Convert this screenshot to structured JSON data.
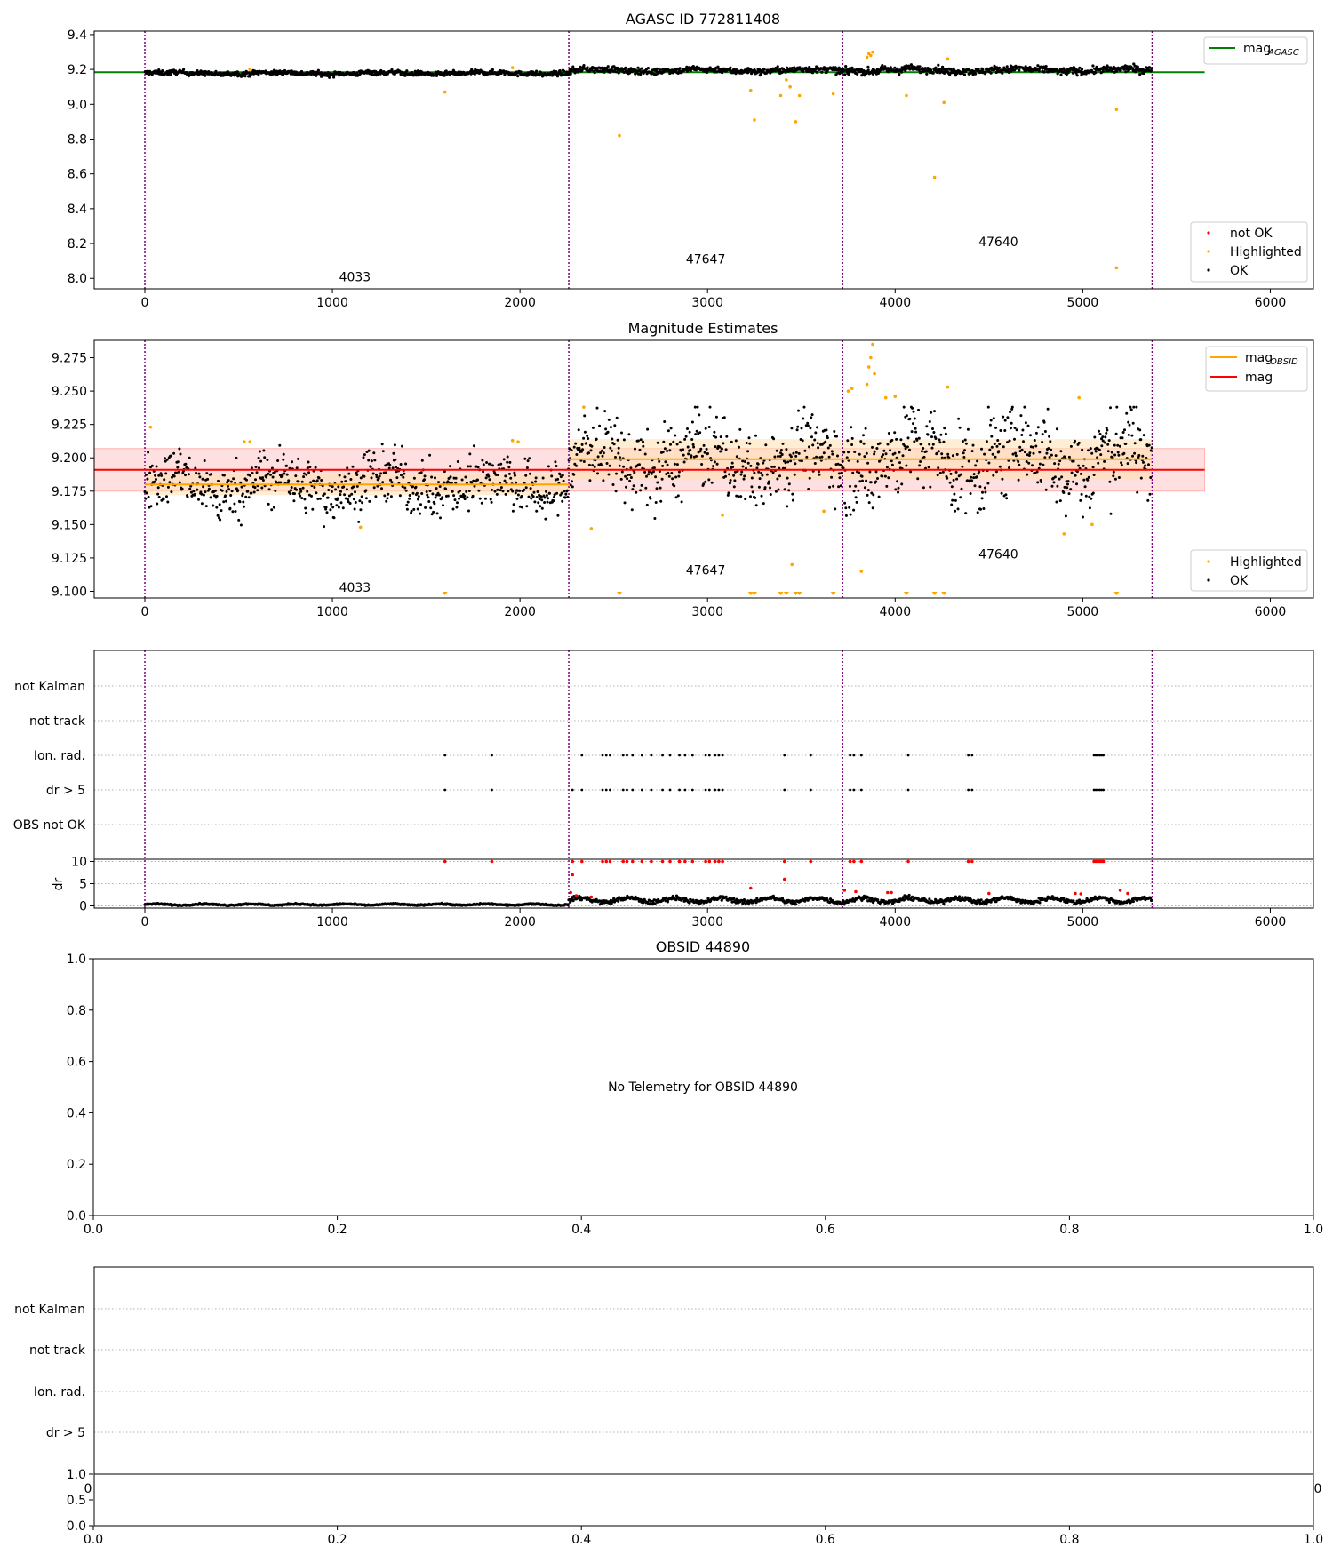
{
  "figure": {
    "title": "AGASC ID 772811408",
    "obs_labels": [
      "4033",
      "47647",
      "47640"
    ],
    "obs_boundaries": [
      0,
      2260,
      3720,
      5370
    ],
    "colors": {
      "boundary": "#800080",
      "ok": "#000000",
      "highlighted": "#ffa500",
      "not_ok": "#ff0000",
      "mag_agasc": "#008000",
      "mag": "#ff0000",
      "mag_obsid": "#ffa500",
      "band_mag": "#ffcccc",
      "band_obsid": "#ffe0b0",
      "grid": "#b0b0b0"
    }
  },
  "chart_data": [
    {
      "type": "scatter",
      "title": "AGASC ID 772811408",
      "xlim": [
        -270,
        6230
      ],
      "ylim": [
        7.94,
        9.42
      ],
      "xticks": [
        0,
        1000,
        2000,
        3000,
        4000,
        5000,
        6000
      ],
      "yticks": [
        8.0,
        8.2,
        8.4,
        8.6,
        8.8,
        9.0,
        9.2,
        9.4
      ],
      "ytick_labels": [
        "8.0",
        "8.2",
        "8.4",
        "8.6",
        "8.8",
        "9.0",
        "9.2",
        "9.4"
      ],
      "lines": [
        {
          "name": "mag_AGASC",
          "y": 9.184,
          "x": [
            -270,
            5650
          ],
          "color": "#008000"
        }
      ],
      "legend_lines": [
        {
          "label": "mag",
          "sub": "AGASC",
          "color": "#008000"
        }
      ],
      "legend_points": [
        {
          "label": "not OK",
          "color": "#ff0000"
        },
        {
          "label": "Highlighted",
          "color": "#ffa500"
        },
        {
          "label": "OK",
          "color": "#000000"
        }
      ],
      "segments": [
        {
          "x_start": 0,
          "x_end": 2260,
          "center": 9.178,
          "spread": 0.007
        },
        {
          "x_start": 2260,
          "x_end": 3720,
          "center": 9.195,
          "spread": 0.009
        },
        {
          "x_start": 3720,
          "x_end": 5370,
          "center": 9.196,
          "spread": 0.01
        }
      ],
      "highlighted_points": [
        [
          1600,
          9.07
        ],
        [
          2530,
          8.82
        ],
        [
          3230,
          9.08
        ],
        [
          3250,
          8.91
        ],
        [
          3390,
          9.05
        ],
        [
          3420,
          9.14
        ],
        [
          3440,
          9.1
        ],
        [
          3470,
          8.9
        ],
        [
          3490,
          9.05
        ],
        [
          3670,
          9.06
        ],
        [
          3850,
          9.27
        ],
        [
          3860,
          9.29
        ],
        [
          3870,
          9.28
        ],
        [
          3880,
          9.3
        ],
        [
          4060,
          9.05
        ],
        [
          4210,
          8.58
        ],
        [
          4260,
          9.01
        ],
        [
          5180,
          8.97
        ],
        [
          5180,
          8.06
        ],
        [
          4280,
          9.26
        ],
        [
          560,
          9.2
        ],
        [
          1960,
          9.21
        ]
      ],
      "annotations": [
        {
          "text": "4033",
          "x": 1120,
          "y": 8.01
        },
        {
          "text": "47647",
          "x": 2990,
          "y": 8.11
        },
        {
          "text": "47640",
          "x": 4550,
          "y": 8.21
        }
      ]
    },
    {
      "type": "scatter",
      "title": "Magnitude Estimates",
      "xlim": [
        -270,
        6230
      ],
      "ylim": [
        9.095,
        9.288
      ],
      "xticks": [
        0,
        1000,
        2000,
        3000,
        4000,
        5000,
        6000
      ],
      "yticks": [
        9.1,
        9.125,
        9.15,
        9.175,
        9.2,
        9.225,
        9.25,
        9.275
      ],
      "ytick_labels": [
        "9.100",
        "9.125",
        "9.150",
        "9.175",
        "9.200",
        "9.225",
        "9.250",
        "9.275"
      ],
      "mag": {
        "y": 9.191,
        "band": [
          9.175,
          9.207
        ],
        "x": [
          -270,
          5650
        ]
      },
      "mag_obsid": [
        {
          "x": [
            0,
            2260
          ],
          "y": 9.18,
          "band": [
            9.172,
            9.188
          ]
        },
        {
          "x": [
            2260,
            5370
          ],
          "y": 9.199,
          "band": [
            9.184,
            9.214
          ]
        }
      ],
      "legend_lines": [
        {
          "label": "mag",
          "sub": "OBSID",
          "color": "#ffa500"
        },
        {
          "label": "mag",
          "sub": "",
          "color": "#ff0000"
        }
      ],
      "legend_points": [
        {
          "label": "Highlighted",
          "color": "#ffa500"
        },
        {
          "label": "OK",
          "color": "#000000"
        }
      ],
      "segments": [
        {
          "x_start": 0,
          "x_end": 2260,
          "center": 9.18,
          "spread": 0.01
        },
        {
          "x_start": 2260,
          "x_end": 3720,
          "center": 9.198,
          "spread": 0.014
        },
        {
          "x_start": 3720,
          "x_end": 5370,
          "center": 9.2,
          "spread": 0.016
        }
      ],
      "highlighted_points": [
        [
          30,
          9.223
        ],
        [
          530,
          9.212
        ],
        [
          560,
          9.212
        ],
        [
          1960,
          9.213
        ],
        [
          1990,
          9.212
        ],
        [
          1150,
          9.148
        ],
        [
          2340,
          9.238
        ],
        [
          2380,
          9.147
        ],
        [
          3080,
          9.157
        ],
        [
          3450,
          9.12
        ],
        [
          3620,
          9.16
        ],
        [
          3750,
          9.25
        ],
        [
          3770,
          9.252
        ],
        [
          3850,
          9.255
        ],
        [
          3860,
          9.268
        ],
        [
          3870,
          9.275
        ],
        [
          3880,
          9.285
        ],
        [
          3890,
          9.263
        ],
        [
          3950,
          9.245
        ],
        [
          4000,
          9.246
        ],
        [
          4280,
          9.253
        ],
        [
          3820,
          9.115
        ],
        [
          4900,
          9.143
        ],
        [
          4980,
          9.245
        ],
        [
          5050,
          9.15
        ]
      ],
      "clipped_points_x": [
        1600,
        2530,
        3230,
        3250,
        3390,
        3420,
        3470,
        3490,
        3670,
        4060,
        4210,
        4260,
        5180
      ],
      "annotations": [
        {
          "text": "4033",
          "x": 1120,
          "y": 9.103
        },
        {
          "text": "47647",
          "x": 2990,
          "y": 9.116
        },
        {
          "text": "47640",
          "x": 4550,
          "y": 9.128
        }
      ]
    },
    {
      "type": "scatter",
      "title": "",
      "xlim": [
        -270,
        6230
      ],
      "xticks": [
        0,
        1000,
        2000,
        3000,
        4000,
        5000,
        6000
      ],
      "flag_rows": [
        "not Kalman",
        "not track",
        "Ion. rad.",
        "dr > 5",
        "OBS not OK"
      ],
      "flag_points": {
        "Ion. rad.": [
          1600,
          1850,
          2330,
          2440,
          2460,
          2480,
          2550,
          2570,
          2600,
          2650,
          2700,
          2760,
          2800,
          2850,
          2880,
          2920,
          2990,
          3010,
          3040,
          3060,
          3080,
          3410,
          3550,
          3760,
          3780,
          3820,
          4070,
          4390,
          4410,
          5060,
          5070,
          5080,
          5090,
          5100,
          5110
        ],
        "dr > 5": [
          1600,
          1850,
          2280,
          2330,
          2440,
          2460,
          2480,
          2550,
          2570,
          2600,
          2650,
          2700,
          2760,
          2800,
          2850,
          2880,
          2920,
          2990,
          3010,
          3040,
          3060,
          3080,
          3410,
          3550,
          3760,
          3780,
          3820,
          4070,
          4390,
          4410,
          5060,
          5070,
          5080,
          5090,
          5100,
          5110
        ]
      },
      "dr": {
        "ylabel": "dr",
        "ylim": [
          -0.5,
          10.5
        ],
        "yticks": [
          0,
          5,
          10
        ],
        "ytick_labels": [
          "0",
          "5",
          "10"
        ],
        "segments": [
          {
            "x_start": 0,
            "x_end": 2260,
            "center": 0.3,
            "spread": 0.15
          },
          {
            "x_start": 2260,
            "x_end": 5370,
            "center": 1.3,
            "spread": 0.5
          }
        ],
        "not_ok_clipped_x": [
          1600,
          1850,
          2280,
          2330,
          2440,
          2460,
          2480,
          2550,
          2570,
          2600,
          2650,
          2700,
          2760,
          2800,
          2850,
          2880,
          2920,
          2990,
          3010,
          3040,
          3060,
          3080,
          3410,
          3550,
          3760,
          3780,
          3820,
          4070,
          4390,
          4410,
          5060,
          5070,
          5080,
          5090,
          5100,
          5110
        ],
        "not_ok_points": [
          [
            2270,
            3.0
          ],
          [
            2280,
            7.0
          ],
          [
            3230,
            4.0
          ],
          [
            3410,
            6.0
          ],
          [
            3730,
            3.5
          ],
          [
            3790,
            3.2
          ],
          [
            3960,
            3.0
          ],
          [
            3980,
            3.0
          ],
          [
            4500,
            2.8
          ],
          [
            4960,
            2.8
          ],
          [
            4990,
            2.7
          ],
          [
            5200,
            3.5
          ],
          [
            5240,
            2.8
          ],
          [
            2300,
            2.3
          ],
          [
            2380,
            2.0
          ]
        ]
      }
    },
    {
      "type": "scatter",
      "title": "OBSID 44890",
      "xlim": [
        0,
        1
      ],
      "ylim": [
        0,
        1
      ],
      "xticks": [
        0.0,
        0.2,
        0.4,
        0.6,
        0.8,
        1.0
      ],
      "xtick_labels": [
        "0.0",
        "0.2",
        "0.4",
        "0.6",
        "0.8",
        "1.0"
      ],
      "yticks": [
        0.0,
        0.2,
        0.4,
        0.6,
        0.8,
        1.0
      ],
      "ytick_labels": [
        "0.0",
        "0.2",
        "0.4",
        "0.6",
        "0.8",
        "1.0"
      ],
      "message": "No Telemetry for OBSID 44890"
    },
    {
      "type": "scatter",
      "title": "",
      "flag_rows": [
        "not Kalman",
        "not track",
        "Ion. rad.",
        "dr > 5"
      ],
      "xtick_labels_partial": [
        "0",
        "0"
      ],
      "lower": {
        "ylim": [
          0,
          1
        ],
        "yticks": [
          0.0,
          0.5,
          1.0
        ],
        "ytick_labels": [
          "0.0",
          "0.5",
          "1.0"
        ],
        "xticks": [
          0.0,
          0.2,
          0.4,
          0.6,
          0.8,
          1.0
        ],
        "xtick_labels": [
          "0.0",
          "0.2",
          "0.4",
          "0.6",
          "0.8",
          "1.0"
        ]
      }
    }
  ]
}
